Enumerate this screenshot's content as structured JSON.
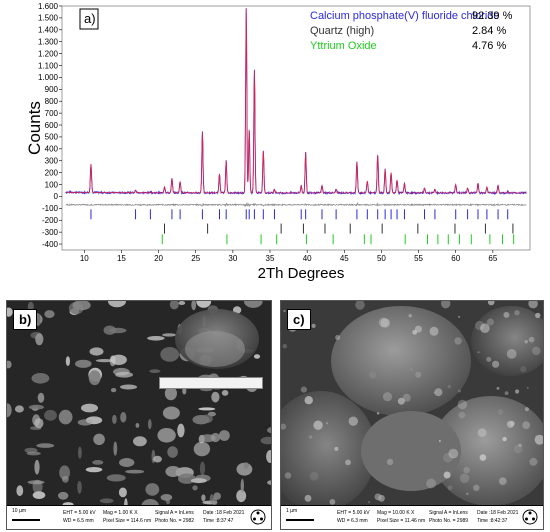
{
  "panel_a": {
    "label": "a)",
    "legend": [
      {
        "name": "Calcium phosphate(V) fluoride chloride",
        "value": "92.39 %",
        "color": "#2a2ae0"
      },
      {
        "name": "Quartz (high)",
        "value": "2.84 %",
        "color": "#333333"
      },
      {
        "name": "Yttrium Oxide",
        "value": "4.76 %",
        "color": "#22cc22"
      }
    ]
  },
  "chart_data": {
    "type": "line",
    "xlabel": "2Th Degrees",
    "ylabel": "Counts",
    "xlim": [
      7,
      70
    ],
    "ylim": [
      -450,
      1600
    ],
    "x_ticks": [
      10,
      15,
      20,
      25,
      30,
      35,
      40,
      45,
      50,
      55,
      60,
      65
    ],
    "y_ticks": [
      -400,
      -300,
      -200,
      -100,
      0,
      100,
      200,
      300,
      400,
      500,
      600,
      700,
      800,
      900,
      1000,
      1100,
      1200,
      1300,
      1400,
      1500,
      1600
    ],
    "y_tick_labels": [
      "-400",
      "-300",
      "-200",
      "-100",
      "0",
      "100",
      "200",
      "300",
      "400",
      "500",
      "600",
      "700",
      "800",
      "900",
      "1.000",
      "1.100",
      "1.200",
      "1.300",
      "1.400",
      "1.500",
      "1.600"
    ],
    "baseline_counts": 30,
    "difference_offset": -70,
    "peaks": [
      {
        "x": 10.9,
        "y": 270
      },
      {
        "x": 16.9,
        "y": 50
      },
      {
        "x": 18.9,
        "y": 40
      },
      {
        "x": 20.8,
        "y": 80
      },
      {
        "x": 21.8,
        "y": 150
      },
      {
        "x": 22.9,
        "y": 125
      },
      {
        "x": 25.9,
        "y": 540
      },
      {
        "x": 28.2,
        "y": 190
      },
      {
        "x": 29.1,
        "y": 300
      },
      {
        "x": 31.8,
        "y": 1580
      },
      {
        "x": 32.2,
        "y": 560
      },
      {
        "x": 32.9,
        "y": 1060
      },
      {
        "x": 34.1,
        "y": 380
      },
      {
        "x": 35.6,
        "y": 60
      },
      {
        "x": 39.2,
        "y": 90
      },
      {
        "x": 39.8,
        "y": 370
      },
      {
        "x": 42.0,
        "y": 90
      },
      {
        "x": 43.9,
        "y": 60
      },
      {
        "x": 46.7,
        "y": 290
      },
      {
        "x": 48.1,
        "y": 130
      },
      {
        "x": 49.5,
        "y": 350
      },
      {
        "x": 50.5,
        "y": 230
      },
      {
        "x": 51.3,
        "y": 200
      },
      {
        "x": 52.1,
        "y": 140
      },
      {
        "x": 53.1,
        "y": 110
      },
      {
        "x": 55.8,
        "y": 70
      },
      {
        "x": 57.2,
        "y": 60
      },
      {
        "x": 60.0,
        "y": 100
      },
      {
        "x": 61.6,
        "y": 70
      },
      {
        "x": 63.0,
        "y": 110
      },
      {
        "x": 64.2,
        "y": 80
      },
      {
        "x": 65.7,
        "y": 90
      },
      {
        "x": 67.0,
        "y": 40
      }
    ],
    "series": [
      {
        "name": "Calcium phosphate(V) fluoride chloride",
        "color": "#2a2ae0",
        "tick_y": -150,
        "positions": [
          10.9,
          16.9,
          18.9,
          21.8,
          22.9,
          25.9,
          28.2,
          29.1,
          31.8,
          32.2,
          32.9,
          34.1,
          35.6,
          39.2,
          39.8,
          42.0,
          43.9,
          46.7,
          48.1,
          49.5,
          50.5,
          51.3,
          52.1,
          53.1,
          55.8,
          57.2,
          60.0,
          61.6,
          63.0,
          64.2,
          65.7,
          67.0
        ]
      },
      {
        "name": "Quartz (high)",
        "color": "#333333",
        "tick_y": -270,
        "positions": [
          20.8,
          26.6,
          36.5,
          39.5,
          42.4,
          45.8,
          50.1,
          54.9,
          59.9,
          64.0,
          67.7
        ]
      },
      {
        "name": "Yttrium Oxide",
        "color": "#22cc22",
        "tick_y": -360,
        "positions": [
          20.5,
          29.2,
          33.8,
          35.9,
          39.9,
          43.5,
          47.7,
          48.6,
          53.2,
          56.2,
          57.6,
          59.0,
          60.5,
          62.1,
          64.6,
          66.3,
          67.8
        ]
      }
    ]
  },
  "panel_b": {
    "label": "b)",
    "scale": "10 µm",
    "info_col1": [
      "EHT = 5.00 kV",
      "WD = 6.5 mm"
    ],
    "info_col2": [
      "Mag = 1.00 K X",
      "Pixel Size = 114.6 nm"
    ],
    "info_col3": [
      "Signal A = InLens",
      "Photo No. = 2982"
    ],
    "info_col4": [
      "Date :18 Feb 2021",
      "Time :8:37:47"
    ]
  },
  "panel_c": {
    "label": "c)",
    "scale": "1 µm",
    "info_col1": [
      "EHT = 5.00 kV",
      "WD = 6.3 mm"
    ],
    "info_col2": [
      "Mag = 10.00 K X",
      "Pixel Size = 11.46 nm"
    ],
    "info_col3": [
      "Signal A = InLens",
      "Photo No. = 2989"
    ],
    "info_col4": [
      "Date :18 Feb 2021",
      "Time :8:42:37"
    ]
  }
}
